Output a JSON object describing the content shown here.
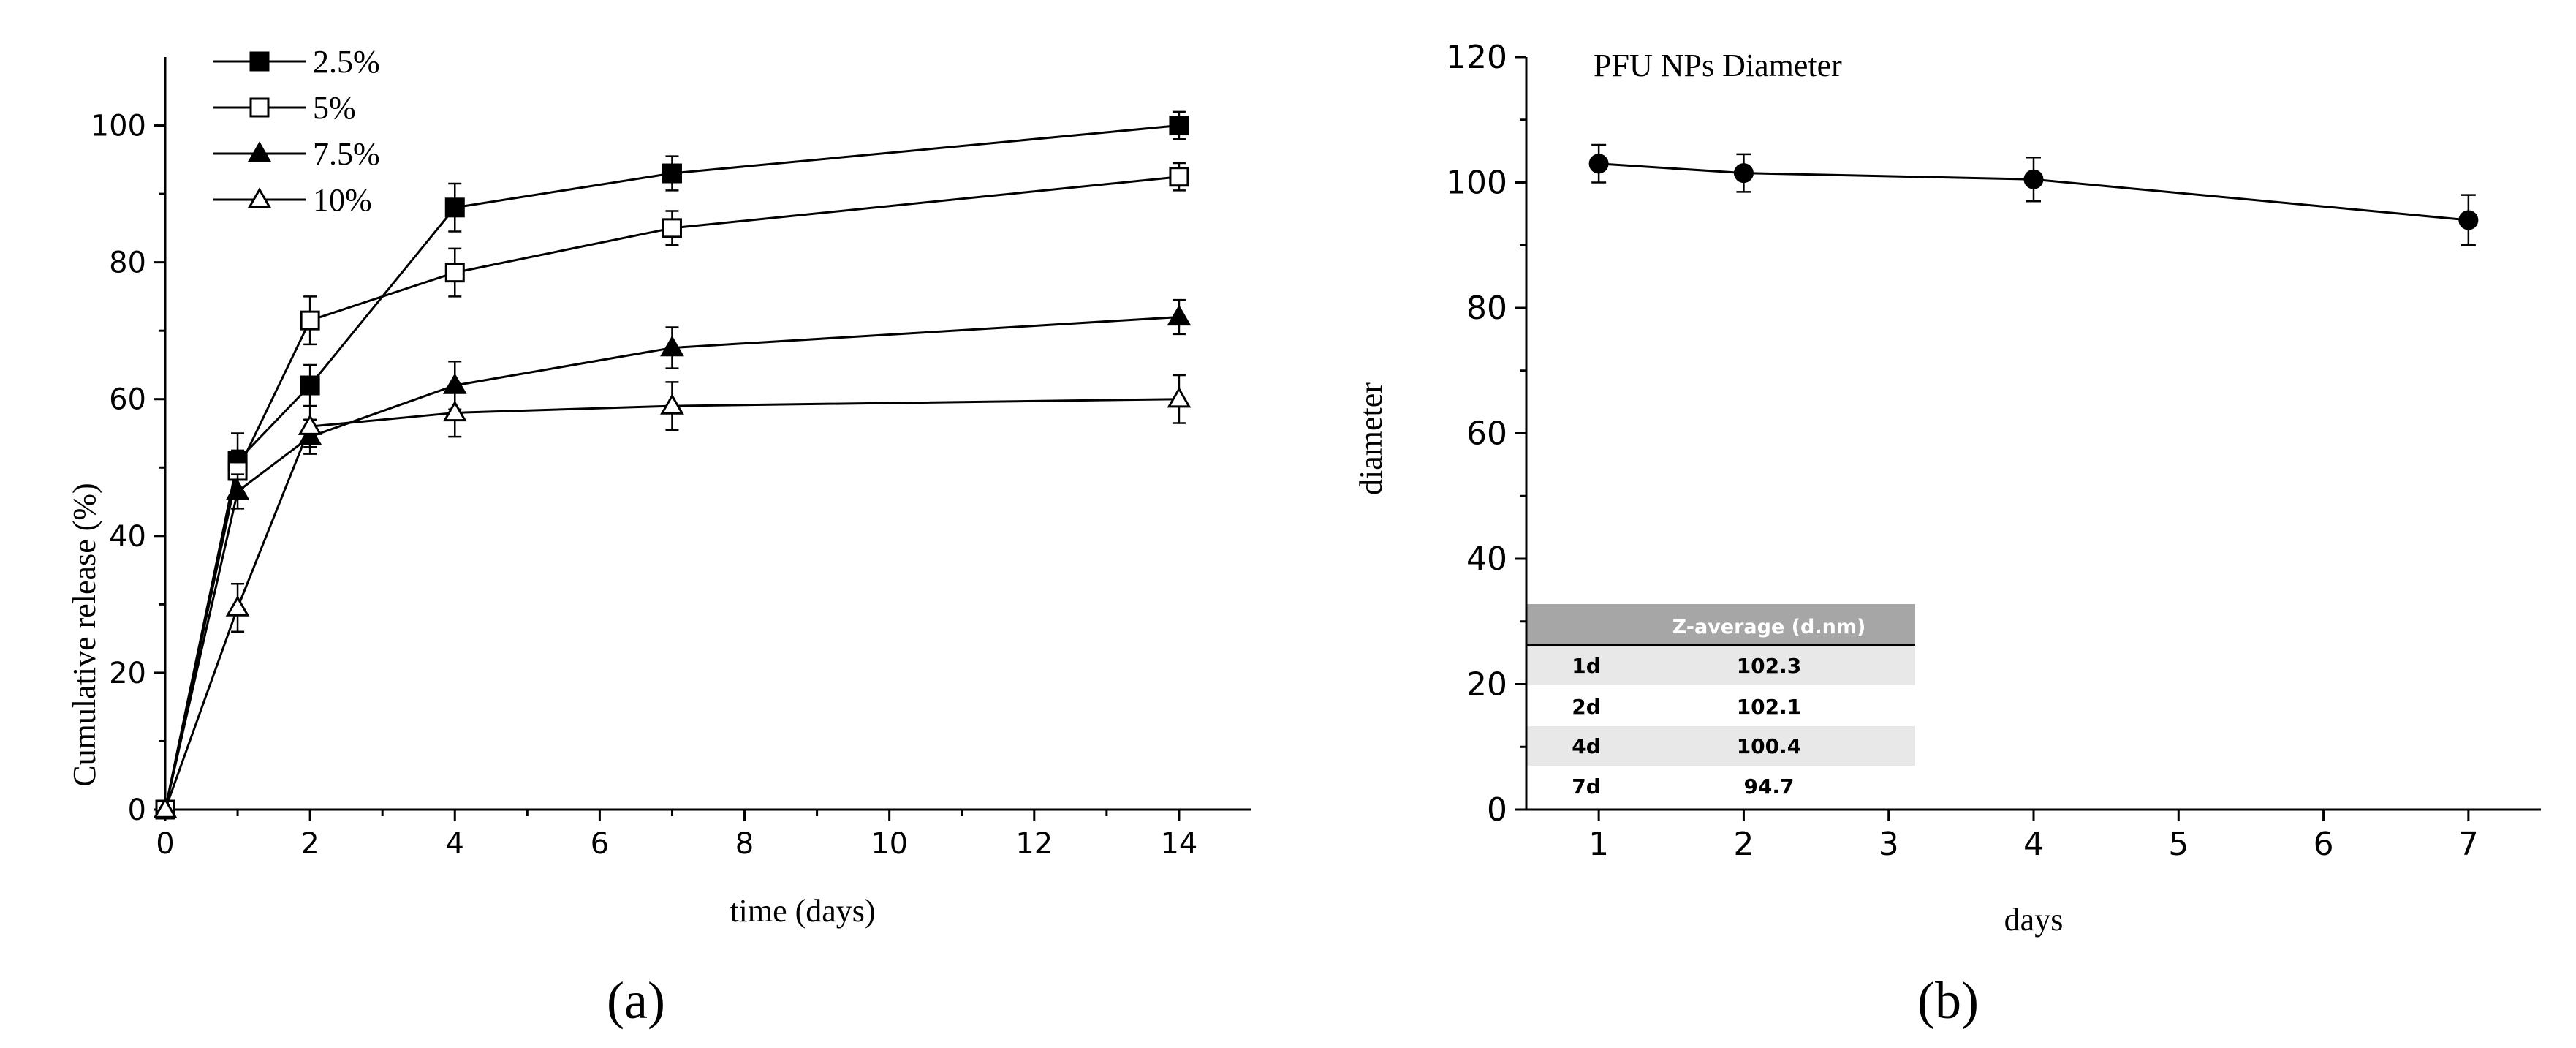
{
  "chart_data": [
    {
      "type": "line",
      "panel_label": "(a)",
      "title": "",
      "xlabel": "time (days)",
      "ylabel": "Cumulative release (%)",
      "xlim": [
        0,
        15
      ],
      "ylim": [
        0,
        110
      ],
      "xticks": [
        0,
        2,
        4,
        6,
        8,
        10,
        12,
        14
      ],
      "yticks": [
        0,
        20,
        40,
        60,
        80,
        100
      ],
      "grid": false,
      "legend_position": "top-left",
      "series": [
        {
          "name": "2.5%",
          "marker": "square-filled",
          "x": [
            0,
            1,
            2,
            4,
            7,
            14
          ],
          "y": [
            0,
            51,
            62,
            88,
            93,
            100
          ],
          "err": [
            0,
            4,
            3,
            3.5,
            2.5,
            2
          ]
        },
        {
          "name": "5%",
          "marker": "square-open",
          "x": [
            0,
            1,
            2,
            4,
            7,
            14
          ],
          "y": [
            0,
            49.5,
            71.5,
            78.5,
            85,
            92.5
          ],
          "err": [
            0,
            3,
            3.5,
            3.5,
            2.5,
            2
          ]
        },
        {
          "name": "7.5%",
          "marker": "triangle-filled",
          "x": [
            0,
            1,
            2,
            4,
            7,
            14
          ],
          "y": [
            0,
            46.5,
            54.5,
            62,
            67.5,
            72
          ],
          "err": [
            0,
            2.5,
            2.5,
            3.5,
            3,
            2.5
          ]
        },
        {
          "name": "10%",
          "marker": "triangle-open",
          "x": [
            0,
            1,
            2,
            4,
            7,
            14
          ],
          "y": [
            0,
            29.5,
            56,
            58,
            59,
            60
          ],
          "err": [
            0,
            3.5,
            3,
            3.5,
            3.5,
            3.5
          ]
        }
      ]
    },
    {
      "type": "line",
      "panel_label": "(b)",
      "title": "PFU NPs Diameter",
      "xlabel": "days",
      "ylabel": "diameter",
      "xlim": [
        0.5,
        7.5
      ],
      "ylim": [
        0,
        120
      ],
      "xticks": [
        1,
        2,
        3,
        4,
        5,
        6,
        7
      ],
      "yticks": [
        0,
        20,
        40,
        60,
        80,
        100,
        120
      ],
      "grid": false,
      "series": [
        {
          "name": "diameter",
          "marker": "circle-filled",
          "x": [
            1,
            2,
            4,
            7
          ],
          "y": [
            103,
            101.5,
            100.5,
            94
          ],
          "err": [
            3,
            3,
            3.5,
            4
          ]
        }
      ],
      "inset_table": {
        "headers": [
          "",
          "Z-average (d.nm)"
        ],
        "rows": [
          [
            "1d",
            "102.3"
          ],
          [
            "2d",
            "102.1"
          ],
          [
            "4d",
            "100.4"
          ],
          [
            "7d",
            "94.7"
          ]
        ]
      }
    }
  ]
}
